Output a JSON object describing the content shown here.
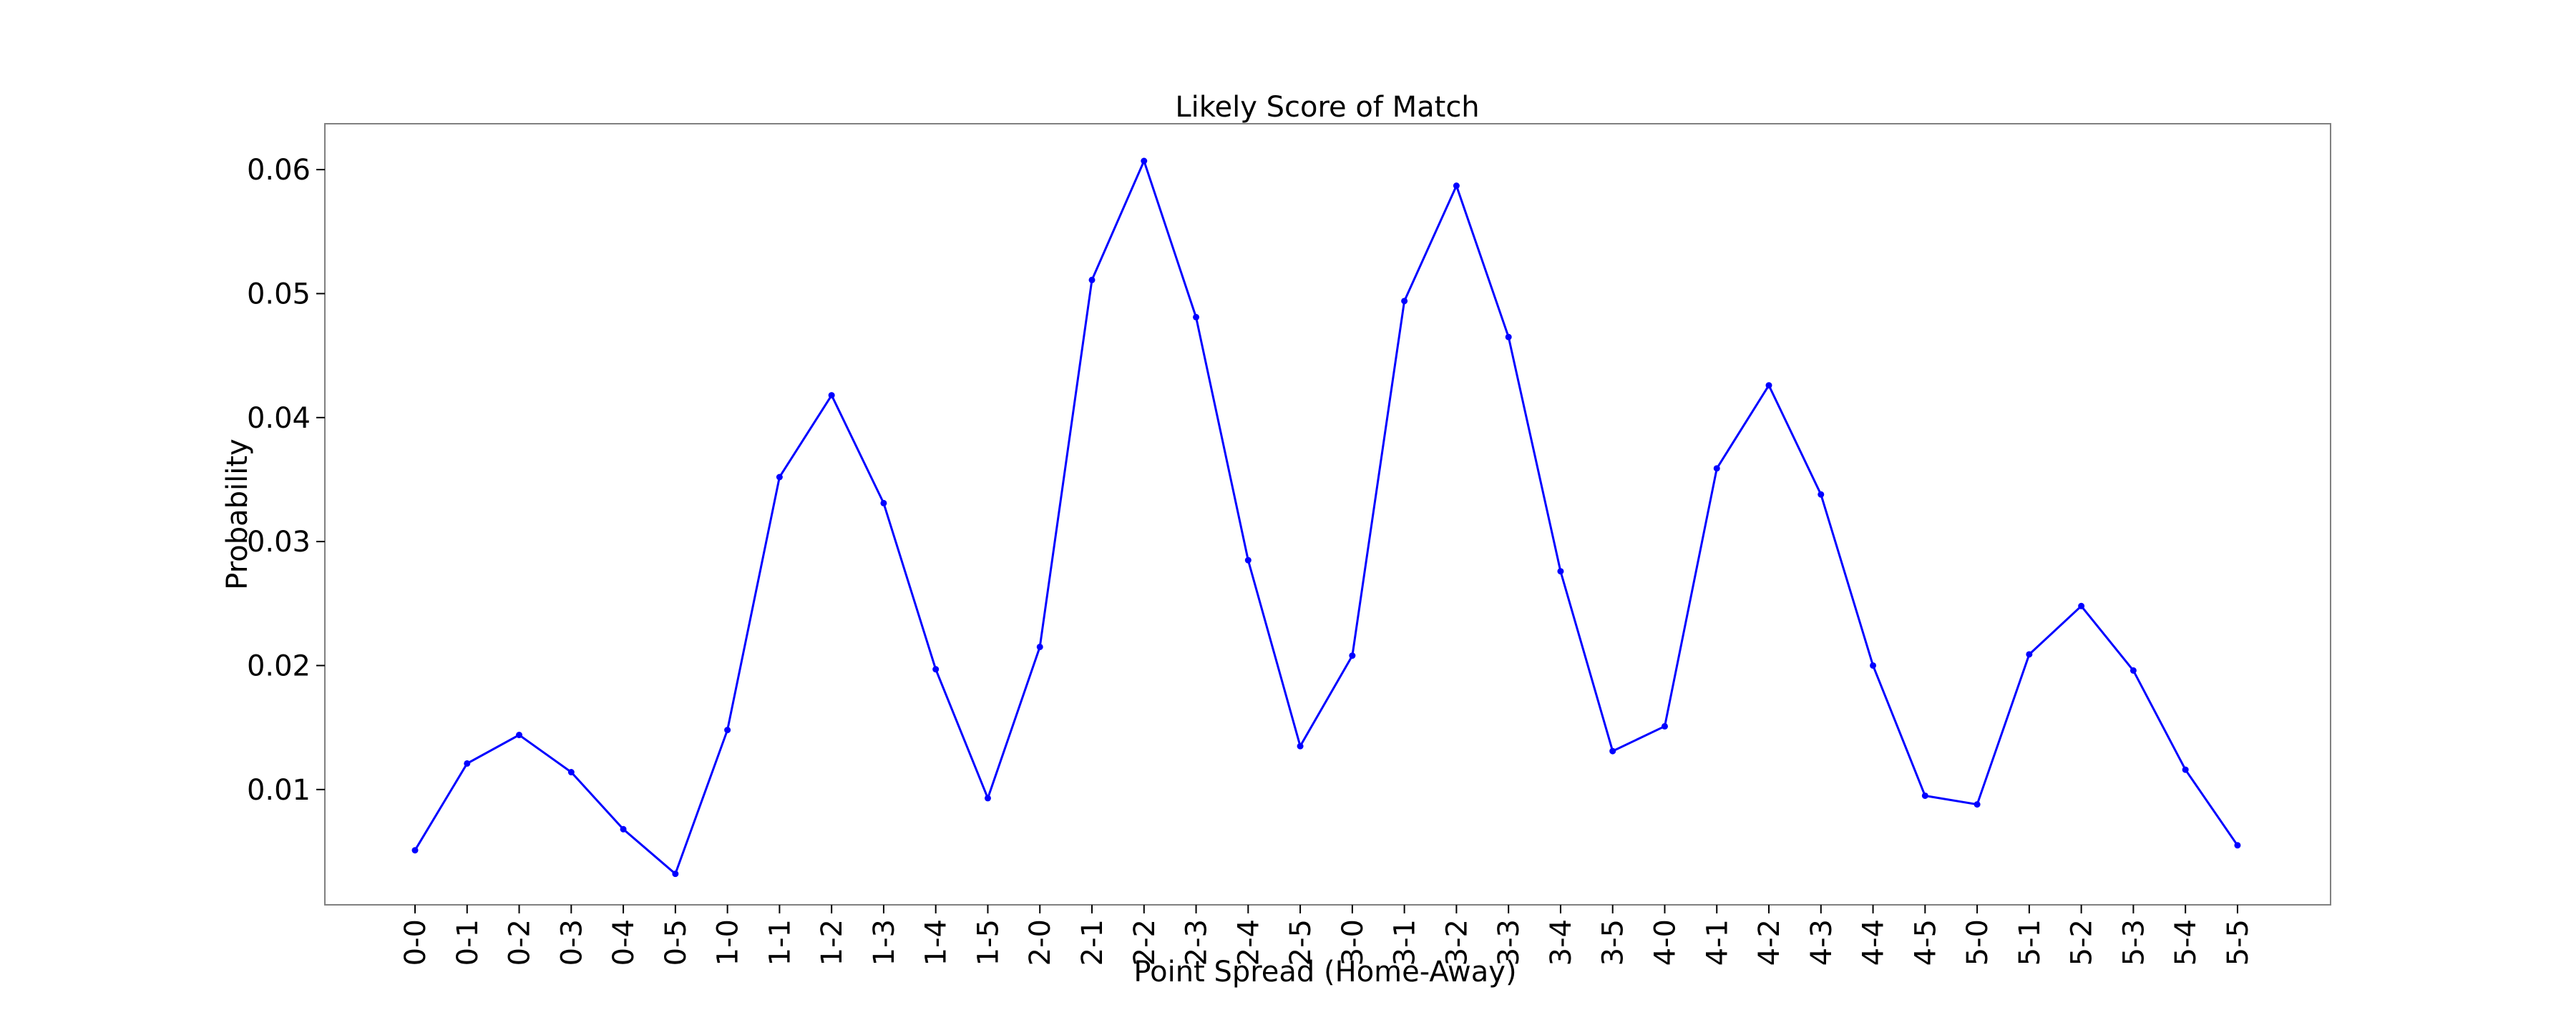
{
  "chart_data": {
    "type": "line",
    "title": "Likely Score of Match",
    "xlabel": "Point Spread (Home-Away)",
    "ylabel": "Probability",
    "grid": false,
    "legend": "none",
    "colors": {
      "series": "#0000ff",
      "frame": "#808080",
      "text": "#000000"
    },
    "ylim": [
      0.0007,
      0.0637
    ],
    "yticks": [
      0.01,
      0.02,
      0.03,
      0.04,
      0.05,
      0.06
    ],
    "ytick_labels": [
      "0.01",
      "0.02",
      "0.03",
      "0.04",
      "0.05",
      "0.06"
    ],
    "categories": [
      "0-0",
      "0-1",
      "0-2",
      "0-3",
      "0-4",
      "0-5",
      "1-0",
      "1-1",
      "1-2",
      "1-3",
      "1-4",
      "1-5",
      "2-0",
      "2-1",
      "2-2",
      "2-3",
      "2-4",
      "2-5",
      "3-0",
      "3-1",
      "3-2",
      "3-3",
      "3-4",
      "3-5",
      "4-0",
      "4-1",
      "4-2",
      "4-3",
      "4-4",
      "4-5",
      "5-0",
      "5-1",
      "5-2",
      "5-3",
      "5-4",
      "5-5"
    ],
    "series": [
      {
        "values": [
          0.0051,
          0.0121,
          0.0144,
          0.0114,
          0.0068,
          0.0032,
          0.0148,
          0.0352,
          0.0418,
          0.0331,
          0.0197,
          0.0093,
          0.0215,
          0.0511,
          0.0607,
          0.0481,
          0.0285,
          0.0135,
          0.0208,
          0.0494,
          0.0587,
          0.0465,
          0.0276,
          0.0131,
          0.0151,
          0.0359,
          0.0426,
          0.0338,
          0.02,
          0.0095,
          0.0088,
          0.0209,
          0.0248,
          0.0196,
          0.0116,
          0.0055
        ]
      }
    ]
  }
}
